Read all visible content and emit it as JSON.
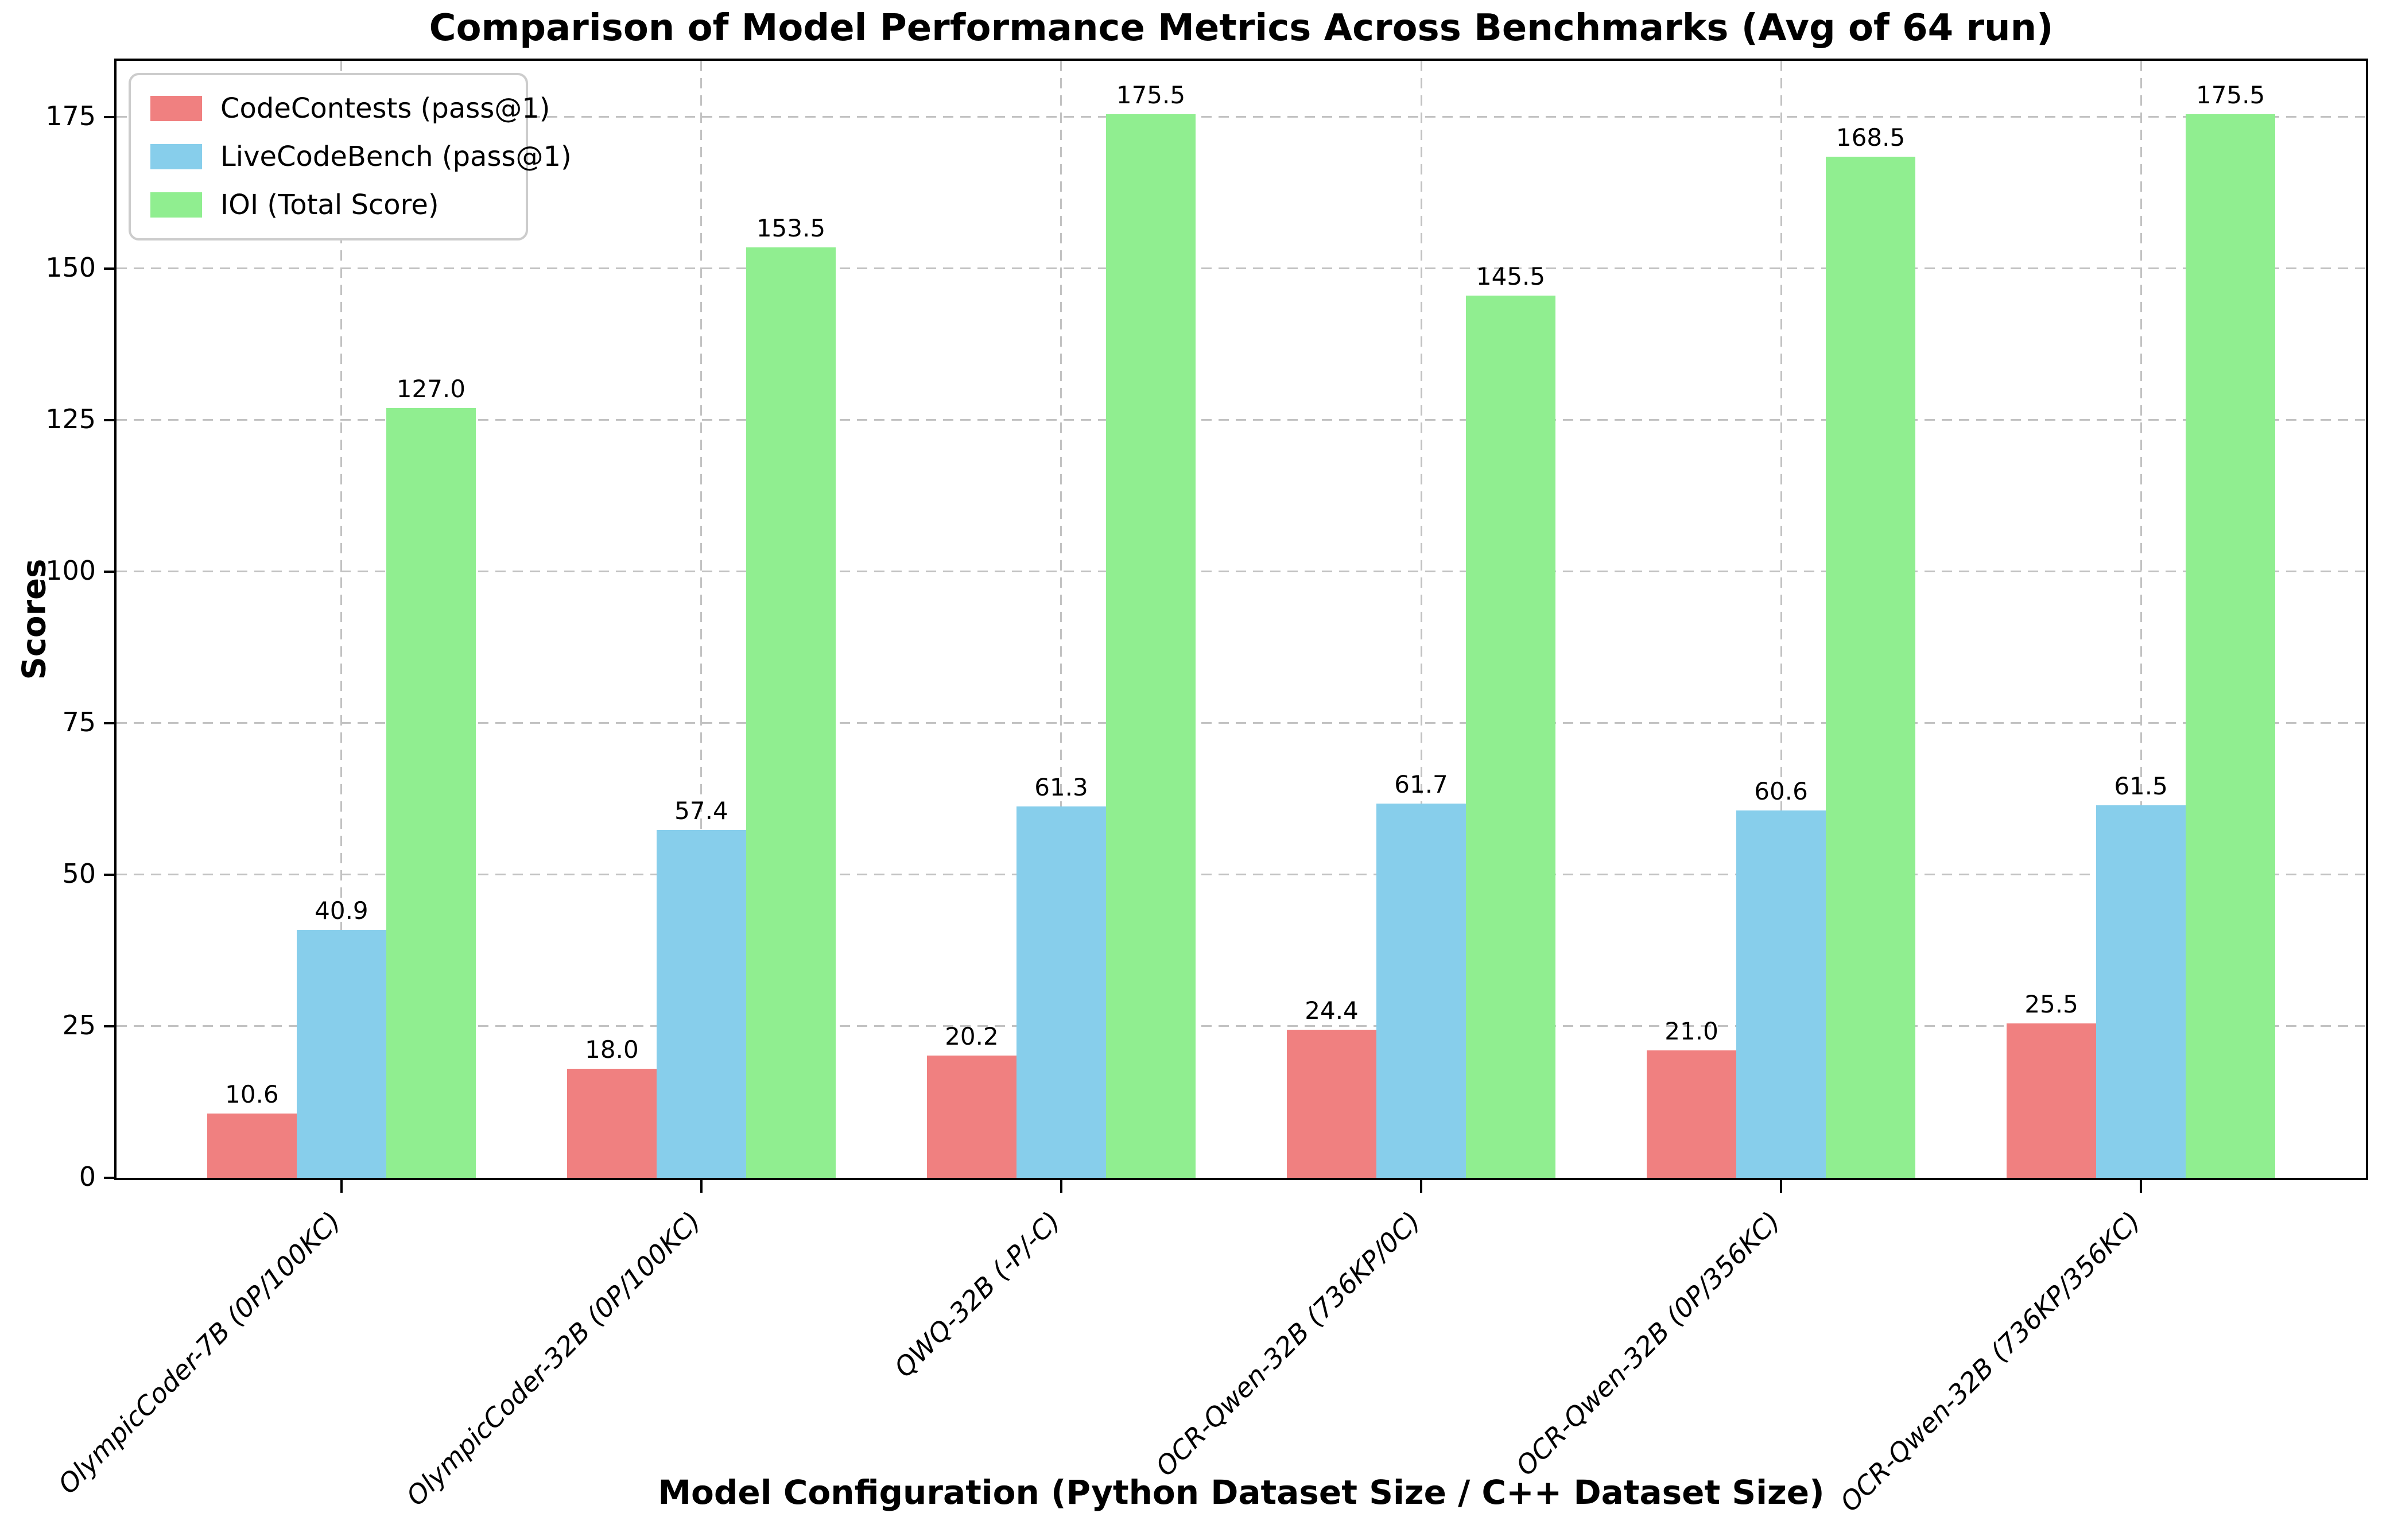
{
  "chart_data": {
    "type": "bar",
    "title": "Comparison of Model Performance Metrics Across Benchmarks (Avg of 64 run)",
    "xlabel": "Model Configuration (Python Dataset Size / C++ Dataset Size)",
    "ylabel": "Scores",
    "categories": [
      "OlympicCoder-7B (0P/100KC)",
      "OlympicCoder-32B (0P/100KC)",
      "QWQ-32B (-P/-C)",
      "OCR-Qwen-32B (736KP/0C)",
      "OCR-Qwen-32B (0P/356KC)",
      "OCR-Qwen-32B (736KP/356KC)"
    ],
    "series": [
      {
        "name": "CodeContests (pass@1)",
        "color": "#F08080",
        "values": [
          10.6,
          18.0,
          20.2,
          24.4,
          21.0,
          25.5
        ]
      },
      {
        "name": "LiveCodeBench (pass@1)",
        "color": "#87CEEB",
        "values": [
          40.9,
          57.4,
          61.3,
          61.7,
          60.6,
          61.5
        ]
      },
      {
        "name": "IOI (Total Score)",
        "color": "#90EE90",
        "values": [
          127.0,
          153.5,
          175.5,
          145.5,
          168.5,
          175.5
        ]
      }
    ],
    "yticks": [
      0,
      25,
      50,
      75,
      100,
      125,
      150,
      175
    ],
    "ylim": [
      0,
      184.275
    ],
    "grid": true,
    "grid_style": "dashed",
    "legend_position": "upper left",
    "bar_label_format": "one-decimal"
  }
}
